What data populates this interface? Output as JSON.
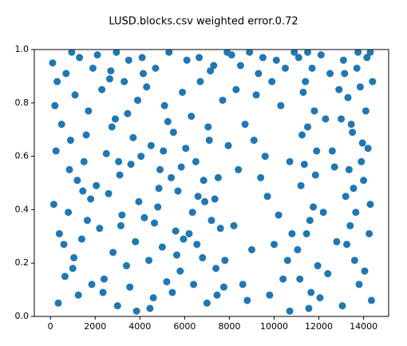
{
  "chart_data": {
    "type": "scatter",
    "title": "LUSD.blocks.csv weighted error.0.72",
    "color": "#1f77b4",
    "xlim": [
      -720,
      15120
    ],
    "ylim": [
      0,
      1
    ],
    "xticks": [
      0,
      2000,
      4000,
      6000,
      8000,
      10000,
      12000,
      14000
    ],
    "yticks": [
      {
        "value": 0,
        "label": "0.0"
      },
      0.2,
      0.4,
      0.6,
      0.8,
      {
        "value": 1,
        "label": "1.0"
      }
    ],
    "x": [
      100,
      300,
      500,
      700,
      900,
      1100,
      1300,
      1500,
      1700,
      1900,
      150,
      400,
      650,
      850,
      1050,
      1250,
      1450,
      1650,
      1850,
      250,
      350,
      600,
      800,
      1000,
      1200,
      1400,
      1600,
      1800,
      200,
      950,
      2100,
      2300,
      2500,
      2700,
      2900,
      3100,
      3300,
      3500,
      3700,
      3900,
      2200,
      2400,
      2600,
      2800,
      3000,
      3200,
      3400,
      3600,
      3800,
      2050,
      2350,
      2750,
      3150,
      3550,
      3950,
      2650,
      3050,
      3450,
      3850,
      2950,
      4100,
      4300,
      4500,
      4700,
      4900,
      5100,
      5300,
      5500,
      5700,
      5900,
      4200,
      4400,
      4600,
      4800,
      5000,
      5200,
      5400,
      5600,
      5800,
      4050,
      4450,
      4850,
      5250,
      5650,
      4150,
      4650,
      5050,
      5450,
      5850,
      5950,
      6100,
      6300,
      6500,
      6700,
      6900,
      7100,
      7300,
      7500,
      7700,
      7900,
      6200,
      6400,
      6600,
      6800,
      7000,
      7200,
      7400,
      6050,
      6550,
      7050,
      7600,
      7800,
      7450,
      7950,
      6850,
      6350,
      7150,
      7750,
      6650,
      7350,
      8100,
      8300,
      8500,
      8700,
      8900,
      9100,
      9300,
      9500,
      9700,
      9900,
      10100,
      10300,
      10500,
      10700,
      10900,
      8200,
      8600,
      9000,
      9400,
      9800,
      10200,
      10600,
      10800,
      8400,
      9200,
      9600,
      10000,
      10400,
      8800,
      10700,
      11100,
      11300,
      11500,
      11700,
      11900,
      11200,
      11400,
      11600,
      11800,
      11050,
      11150,
      11350,
      11550,
      11750,
      11950,
      11250,
      11450,
      11650,
      11850,
      11500,
      12100,
      12300,
      12500,
      12700,
      12900,
      12200,
      12400,
      12600,
      12800,
      12050,
      13100,
      13300,
      13500,
      13700,
      13900,
      14100,
      14300,
      13200,
      13400,
      13600,
      13800,
      14000,
      14200,
      14400,
      13050,
      13250,
      13450,
      13650,
      13850,
      14050,
      14250,
      14350,
      13150,
      13550,
      13950,
      14150,
      13350,
      13750,
      14300,
      13000
    ],
    "values": [
      0.95,
      0.88,
      0.72,
      0.91,
      0.66,
      0.83,
      0.97,
      0.58,
      0.77,
      0.93,
      0.42,
      0.31,
      0.15,
      0.55,
      0.22,
      0.08,
      0.47,
      0.36,
      0.12,
      0.62,
      0.05,
      0.27,
      0.39,
      0.18,
      0.51,
      0.29,
      0.68,
      0.44,
      0.79,
      0.99,
      0.98,
      0.85,
      0.61,
      0.92,
      0.74,
      0.53,
      0.88,
      0.96,
      0.67,
      0.81,
      0.33,
      0.14,
      0.46,
      0.24,
      0.04,
      0.38,
      0.19,
      0.57,
      0.28,
      0.49,
      0.09,
      0.71,
      0.34,
      0.11,
      0.43,
      0.89,
      0.58,
      0.76,
      0.02,
      0.99,
      0.97,
      0.86,
      0.64,
      0.93,
      0.55,
      0.79,
      0.99,
      0.69,
      0.47,
      0.84,
      0.37,
      0.21,
      0.07,
      0.41,
      0.26,
      0.13,
      0.52,
      0.32,
      0.17,
      0.6,
      0.03,
      0.48,
      0.73,
      0.23,
      0.91,
      0.35,
      0.62,
      0.09,
      0.56,
      0.29,
      0.96,
      0.75,
      0.58,
      0.88,
      0.43,
      0.66,
      0.94,
      0.52,
      0.81,
      0.99,
      0.31,
      0.12,
      0.45,
      0.22,
      0.05,
      0.36,
      0.18,
      0.63,
      0.27,
      0.71,
      0.33,
      0.21,
      0.08,
      0.64,
      0.51,
      0.39,
      0.92,
      0.11,
      0.97,
      0.44,
      0.98,
      0.85,
      0.94,
      0.72,
      0.99,
      0.66,
      0.91,
      0.97,
      0.45,
      0.88,
      0.96,
      0.79,
      0.93,
      0.58,
      0.99,
      0.34,
      0.12,
      0.25,
      0.52,
      0.08,
      0.38,
      0.21,
      0.31,
      0.55,
      0.83,
      0.6,
      0.27,
      0.14,
      0.06,
      0.02,
      0.97,
      0.84,
      0.71,
      0.93,
      0.62,
      0.49,
      0.88,
      0.36,
      0.77,
      0.25,
      0.14,
      0.57,
      0.03,
      0.41,
      0.19,
      0.68,
      0.31,
      0.09,
      0.53,
      0.99,
      0.98,
      0.74,
      0.91,
      0.56,
      0.85,
      0.39,
      0.16,
      0.62,
      0.28,
      0.07,
      0.96,
      0.82,
      0.69,
      0.93,
      0.58,
      0.77,
      0.99,
      0.45,
      0.34,
      0.21,
      0.12,
      0.51,
      0.63,
      0.88,
      0.04,
      0.27,
      0.72,
      0.39,
      0.86,
      0.17,
      0.31,
      0.06,
      0.91,
      0.48,
      0.65,
      0.97,
      0.55,
      0.99,
      0.42,
      0.74
    ]
  }
}
